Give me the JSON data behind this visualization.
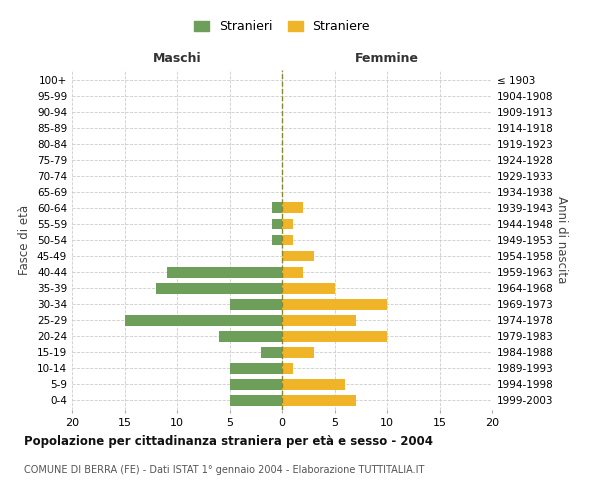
{
  "age_groups": [
    "0-4",
    "5-9",
    "10-14",
    "15-19",
    "20-24",
    "25-29",
    "30-34",
    "35-39",
    "40-44",
    "45-49",
    "50-54",
    "55-59",
    "60-64",
    "65-69",
    "70-74",
    "75-79",
    "80-84",
    "85-89",
    "90-94",
    "95-99",
    "100+"
  ],
  "birth_years": [
    "1999-2003",
    "1994-1998",
    "1989-1993",
    "1984-1988",
    "1979-1983",
    "1974-1978",
    "1969-1973",
    "1964-1968",
    "1959-1963",
    "1954-1958",
    "1949-1953",
    "1944-1948",
    "1939-1943",
    "1934-1938",
    "1929-1933",
    "1924-1928",
    "1919-1923",
    "1914-1918",
    "1909-1913",
    "1904-1908",
    "≤ 1903"
  ],
  "maschi": [
    5,
    5,
    5,
    2,
    6,
    15,
    5,
    12,
    11,
    0,
    1,
    1,
    1,
    0,
    0,
    0,
    0,
    0,
    0,
    0,
    0
  ],
  "femmine": [
    7,
    6,
    1,
    3,
    10,
    7,
    10,
    5,
    2,
    3,
    1,
    1,
    2,
    0,
    0,
    0,
    0,
    0,
    0,
    0,
    0
  ],
  "maschi_color": "#6d9e5a",
  "femmine_color": "#f0b429",
  "title": "Popolazione per cittadinanza straniera per età e sesso - 2004",
  "subtitle": "COMUNE DI BERRA (FE) - Dati ISTAT 1° gennaio 2004 - Elaborazione TUTTITALIA.IT",
  "ylabel_left": "Fasce di età",
  "ylabel_right": "Anni di nascita",
  "xlabel_maschi": "Maschi",
  "xlabel_femmine": "Femmine",
  "legend_stranieri": "Stranieri",
  "legend_straniere": "Straniere",
  "xlim": 20,
  "background_color": "#ffffff",
  "grid_color": "#cccccc"
}
